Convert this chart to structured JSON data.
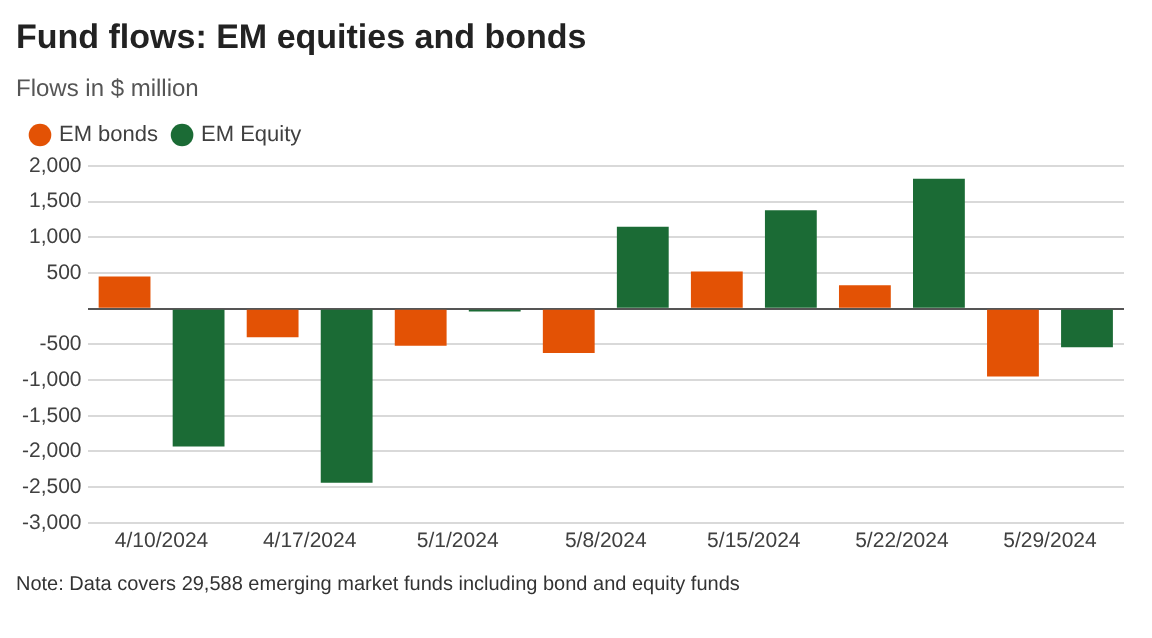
{
  "chart_data": {
    "type": "bar",
    "title": "Fund flows: EM equities and bonds",
    "subtitle": "Flows in $ million",
    "categories": [
      "4/10/2024",
      "4/17/2024",
      "5/1/2024",
      "5/8/2024",
      "5/15/2024",
      "5/22/2024",
      "5/29/2024"
    ],
    "series": [
      {
        "name": "EM bonds",
        "color": "#e35205",
        "values": [
          450,
          -400,
          -520,
          -620,
          520,
          330,
          -950
        ]
      },
      {
        "name": "EM Equity",
        "color": "#1b6b35",
        "values": [
          -1930,
          -2440,
          -40,
          1150,
          1380,
          1820,
          -540
        ]
      }
    ],
    "ylim": [
      -3000,
      2000
    ],
    "yticks": [
      {
        "value": -3000,
        "label": "-3,000"
      },
      {
        "value": -2500,
        "label": "-2,500"
      },
      {
        "value": -2000,
        "label": "-2,000"
      },
      {
        "value": -1500,
        "label": "-1,500"
      },
      {
        "value": -1000,
        "label": "-1,000"
      },
      -500,
      {
        "value": 0,
        "label": null
      },
      500,
      {
        "value": 1000,
        "label": "1,000"
      },
      {
        "value": 1500,
        "label": "1,500"
      },
      {
        "value": 2000,
        "label": "2,000"
      }
    ],
    "grid": "y",
    "legend": "top left",
    "annotations": [
      "Note: Data covers 29,588 emerging market funds including bond and equity funds"
    ]
  }
}
